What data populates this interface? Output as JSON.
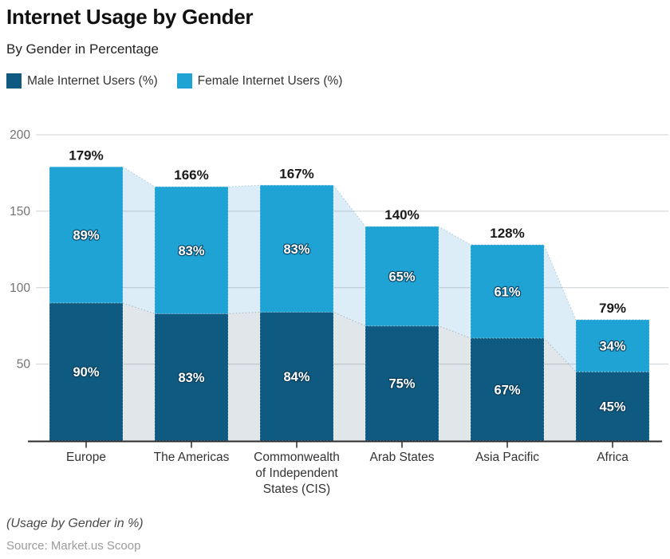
{
  "header": {
    "title": "Internet Usage by Gender",
    "subtitle": "By Gender in Percentage"
  },
  "legend": {
    "items": [
      {
        "label": "Male Internet Users (%)",
        "color": "#0e5a80"
      },
      {
        "label": "Female Internet Users (%)",
        "color": "#1fa3d4"
      }
    ]
  },
  "footer": {
    "note": "(Usage by Gender in %)",
    "source": "Source: Market.us Scoop"
  },
  "chart_data": {
    "type": "bar",
    "stacked": true,
    "title": "Internet Usage by Gender",
    "subtitle": "By Gender in Percentage",
    "categories": [
      "Europe",
      "The Americas",
      "Commonwealth of Independent States (CIS)",
      "Arab States",
      "Asia Pacific",
      "Africa"
    ],
    "series": [
      {
        "name": "Male Internet Users (%)",
        "color": "#0e5a80",
        "values": [
          90,
          83,
          84,
          75,
          67,
          45
        ],
        "value_labels": [
          "90%",
          "83%",
          "84%",
          "75%",
          "67%",
          "45%"
        ]
      },
      {
        "name": "Female Internet Users (%)",
        "color": "#1fa3d4",
        "values": [
          89,
          83,
          83,
          65,
          61,
          34
        ],
        "value_labels": [
          "89%",
          "83%",
          "83%",
          "65%",
          "61%",
          "34%"
        ]
      }
    ],
    "totals": [
      179,
      166,
      167,
      140,
      128,
      79
    ],
    "total_labels": [
      "179%",
      "166%",
      "167%",
      "140%",
      "128%",
      "79%"
    ],
    "y_ticks": [
      50,
      100,
      150,
      200
    ],
    "ylim": [
      0,
      200
    ],
    "grid": true,
    "legend_position": "top",
    "background_band_colors": {
      "female_area": "#dcedf7",
      "male_area": "#e0e6ea"
    },
    "value_label_color": "#ffffff",
    "total_label_color": "#1a1a1a",
    "axis_tick_label_color": "#737373"
  }
}
